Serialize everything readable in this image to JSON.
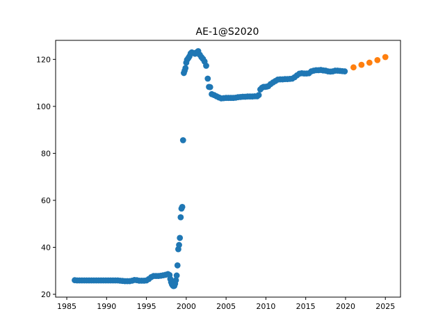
{
  "chart_data": {
    "type": "scatter",
    "title": "AE-1@S2020",
    "xlabel": "",
    "ylabel": "",
    "xlim": [
      1983.6,
      2026.9
    ],
    "ylim": [
      18.8,
      128.1
    ],
    "xticks": [
      1985,
      1990,
      1995,
      2000,
      2005,
      2010,
      2015,
      2020,
      2025
    ],
    "yticks": [
      20,
      40,
      60,
      80,
      100,
      120
    ],
    "grid": false,
    "series": [
      {
        "color": "#1f77b4",
        "points": [
          [
            1986.0,
            26.0
          ],
          [
            1986.3,
            25.9
          ],
          [
            1986.6,
            25.9
          ],
          [
            1986.9,
            25.9
          ],
          [
            1987.2,
            25.9
          ],
          [
            1987.5,
            25.9
          ],
          [
            1987.8,
            25.9
          ],
          [
            1988.1,
            25.9
          ],
          [
            1988.4,
            25.9
          ],
          [
            1988.7,
            25.9
          ],
          [
            1989.0,
            25.9
          ],
          [
            1989.3,
            25.9
          ],
          [
            1989.6,
            25.9
          ],
          [
            1989.9,
            25.9
          ],
          [
            1990.2,
            25.9
          ],
          [
            1990.5,
            25.9
          ],
          [
            1990.8,
            25.9
          ],
          [
            1991.1,
            25.9
          ],
          [
            1991.4,
            25.9
          ],
          [
            1991.7,
            25.8
          ],
          [
            1992.0,
            25.7
          ],
          [
            1992.3,
            25.6
          ],
          [
            1992.6,
            25.6
          ],
          [
            1992.9,
            25.6
          ],
          [
            1993.2,
            25.8
          ],
          [
            1993.5,
            26.1
          ],
          [
            1993.8,
            26.0
          ],
          [
            1994.1,
            25.8
          ],
          [
            1994.4,
            25.8
          ],
          [
            1994.7,
            25.8
          ],
          [
            1995.0,
            25.9
          ],
          [
            1995.3,
            26.5
          ],
          [
            1995.6,
            27.3
          ],
          [
            1995.9,
            27.8
          ],
          [
            1996.2,
            27.8
          ],
          [
            1996.5,
            27.8
          ],
          [
            1996.8,
            27.9
          ],
          [
            1997.1,
            28.1
          ],
          [
            1997.4,
            28.3
          ],
          [
            1997.7,
            28.6
          ],
          [
            1997.9,
            28.2
          ],
          [
            1998.0,
            26.5
          ],
          [
            1998.1,
            25.2
          ],
          [
            1998.2,
            24.3
          ],
          [
            1998.3,
            23.8
          ],
          [
            1998.4,
            23.5
          ],
          [
            1998.5,
            23.6
          ],
          [
            1998.6,
            24.5
          ],
          [
            1998.7,
            26.0
          ],
          [
            1998.8,
            28.0
          ],
          [
            1998.9,
            32.3
          ],
          [
            1999.0,
            39.2
          ],
          [
            1999.1,
            41.0
          ],
          [
            1999.2,
            44.0
          ],
          [
            1999.3,
            52.8
          ],
          [
            1999.4,
            56.5
          ],
          [
            1999.5,
            57.2
          ],
          [
            1999.6,
            85.6
          ],
          [
            1999.7,
            114.2
          ],
          [
            1999.8,
            115.2
          ],
          [
            1999.9,
            116.3
          ],
          [
            2000.0,
            118.6
          ],
          [
            2000.1,
            119.8
          ],
          [
            2000.25,
            120.5
          ],
          [
            2000.4,
            121.3
          ],
          [
            2000.55,
            122.5
          ],
          [
            2000.7,
            123.0
          ],
          [
            2000.9,
            122.7
          ],
          [
            2001.1,
            122.4
          ],
          [
            2001.3,
            123.0
          ],
          [
            2001.5,
            123.5
          ],
          [
            2001.7,
            122.0
          ],
          [
            2001.9,
            121.0
          ],
          [
            2002.1,
            120.2
          ],
          [
            2002.3,
            119.1
          ],
          [
            2002.5,
            117.3
          ],
          [
            2002.7,
            111.8
          ],
          [
            2002.85,
            108.3
          ],
          [
            2003.0,
            108.2
          ],
          [
            2003.2,
            105.2
          ],
          [
            2003.5,
            104.8
          ],
          [
            2003.8,
            104.3
          ],
          [
            2004.1,
            103.8
          ],
          [
            2004.4,
            103.4
          ],
          [
            2004.7,
            103.5
          ],
          [
            2005.0,
            103.6
          ],
          [
            2005.3,
            103.6
          ],
          [
            2005.6,
            103.6
          ],
          [
            2005.9,
            103.6
          ],
          [
            2006.2,
            103.7
          ],
          [
            2006.5,
            103.9
          ],
          [
            2006.8,
            104.0
          ],
          [
            2007.1,
            104.1
          ],
          [
            2007.4,
            104.1
          ],
          [
            2007.7,
            104.2
          ],
          [
            2008.0,
            104.2
          ],
          [
            2008.3,
            104.2
          ],
          [
            2008.6,
            104.3
          ],
          [
            2008.9,
            104.3
          ],
          [
            2009.1,
            104.8
          ],
          [
            2009.3,
            107.2
          ],
          [
            2009.5,
            107.9
          ],
          [
            2009.7,
            108.3
          ],
          [
            2009.9,
            108.3
          ],
          [
            2010.1,
            108.4
          ],
          [
            2010.3,
            108.6
          ],
          [
            2010.6,
            109.5
          ],
          [
            2010.9,
            110.2
          ],
          [
            2011.2,
            110.8
          ],
          [
            2011.5,
            111.4
          ],
          [
            2011.8,
            111.5
          ],
          [
            2012.1,
            111.5
          ],
          [
            2012.4,
            111.6
          ],
          [
            2012.7,
            111.6
          ],
          [
            2013.0,
            111.7
          ],
          [
            2013.3,
            111.8
          ],
          [
            2013.6,
            112.4
          ],
          [
            2013.9,
            113.2
          ],
          [
            2014.2,
            113.9
          ],
          [
            2014.5,
            114.1
          ],
          [
            2014.8,
            114.0
          ],
          [
            2015.1,
            114.0
          ],
          [
            2015.4,
            114.1
          ],
          [
            2015.7,
            114.9
          ],
          [
            2016.0,
            115.2
          ],
          [
            2016.3,
            115.4
          ],
          [
            2016.6,
            115.4
          ],
          [
            2016.9,
            115.5
          ],
          [
            2017.2,
            115.3
          ],
          [
            2017.5,
            115.2
          ],
          [
            2017.8,
            114.9
          ],
          [
            2018.1,
            114.8
          ],
          [
            2018.4,
            114.9
          ],
          [
            2018.7,
            115.2
          ],
          [
            2019.0,
            115.2
          ],
          [
            2019.3,
            115.1
          ],
          [
            2019.6,
            115.0
          ],
          [
            2019.9,
            114.9
          ]
        ]
      },
      {
        "color": "#ff7f0e",
        "points": [
          [
            2021.0,
            116.6
          ],
          [
            2022.0,
            117.7
          ],
          [
            2023.0,
            118.6
          ],
          [
            2024.0,
            119.7
          ],
          [
            2025.0,
            121.0
          ]
        ]
      }
    ]
  }
}
